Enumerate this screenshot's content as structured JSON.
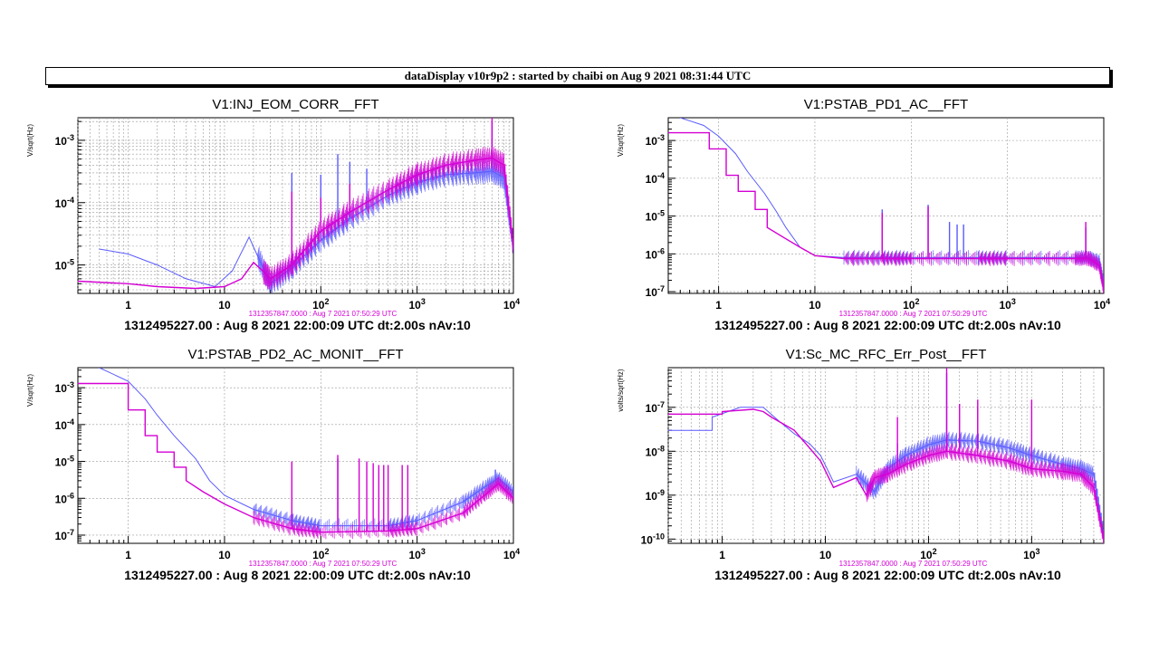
{
  "banner": "dataDisplay v10r9p2 : started by chaibi on Aug  9 2021 08:31:44 UTC",
  "colors": {
    "blue": "#5a5aff",
    "magenta": "#d400d4",
    "ref_label": "#d400d4",
    "grid": "#9a9a9a"
  },
  "chart_data": [
    {
      "type": "line",
      "title": "V1:INJ_EOM_CORR__FFT",
      "ylabel": "V/sqrt(Hz)",
      "xlabel": "",
      "xscale": "log",
      "yscale": "log",
      "xlim": [
        0.3,
        10000
      ],
      "ylim": [
        3.5e-06,
        0.0023
      ],
      "xticks": [
        "1",
        "10",
        "10^2",
        "10^3",
        "10^4"
      ],
      "yticks": [
        "10^-5",
        "10^-4",
        "10^-3"
      ],
      "grid": true,
      "ref_label": "1312357847.0000 : Aug  7 2021 07:50:29 UTC",
      "footer": "1312495227.00 : Aug  8 2021 22:00:09 UTC dt:2.00s nAv:10",
      "series": [
        {
          "color": "blue",
          "x": [
            0.5,
            1,
            2,
            4,
            8,
            12,
            18,
            22,
            30,
            50,
            100,
            200,
            500,
            1000,
            2000,
            4000,
            6000,
            8000,
            10000
          ],
          "y": [
            1.8e-05,
            1.5e-05,
            1e-05,
            6e-06,
            4.5e-06,
            8e-06,
            2.8e-05,
            1.4e-05,
            5e-06,
            9e-06,
            2.5e-05,
            5.5e-05,
            0.00013,
            0.00021,
            0.00028,
            0.0003,
            0.00032,
            0.00025,
            2e-05
          ],
          "peaks": [
            [
              50,
              0.0003
            ],
            [
              100,
              0.00028
            ],
            [
              150,
              0.0006
            ],
            [
              200,
              0.00045
            ],
            [
              300,
              0.00035
            ],
            [
              6000,
              0.002
            ]
          ]
        },
        {
          "color": "magenta",
          "x": [
            0.3,
            1,
            2,
            5,
            10,
            15,
            20,
            25,
            30,
            50,
            100,
            200,
            500,
            1000,
            2000,
            4000,
            6000,
            8000,
            10000
          ],
          "y": [
            5.5e-06,
            5e-06,
            4.5e-06,
            4.2e-06,
            4.5e-06,
            6e-06,
            1.1e-05,
            8e-06,
            6e-06,
            1e-05,
            3.5e-05,
            7e-05,
            0.00016,
            0.00028,
            0.0004,
            0.00048,
            0.00052,
            0.0004,
            2e-05
          ],
          "peaks": [
            [
              50,
              0.00015
            ],
            [
              100,
              0.00012
            ],
            [
              200,
              0.0002
            ],
            [
              6000,
              0.0023
            ]
          ]
        }
      ]
    },
    {
      "type": "line",
      "title": "V1:PSTAB_PD1_AC__FFT",
      "ylabel": "V/sqrt(Hz)",
      "xlabel": "",
      "xscale": "log",
      "yscale": "log",
      "xlim": [
        0.3,
        10000
      ],
      "ylim": [
        9e-08,
        0.004
      ],
      "xticks": [
        "1",
        "10",
        "10^2",
        "10^3",
        "10^4"
      ],
      "yticks": [
        "10^-7",
        "10^-6",
        "10^-5",
        "10^-4",
        "10^-3"
      ],
      "grid": true,
      "ref_label": "1312357847.0000 : Aug  7 2021 07:50:29 UTC",
      "footer": "1312495227.00 : Aug  8 2021 22:00:09 UTC dt:2.00s nAv:10",
      "series": [
        {
          "color": "blue",
          "x": [
            0.4,
            0.7,
            1,
            1.5,
            2,
            3,
            4,
            5,
            7,
            10,
            20,
            50,
            100,
            500,
            1000,
            5000,
            7000,
            9000,
            10000
          ],
          "y": [
            0.004,
            0.0025,
            0.0013,
            0.00045,
            0.00015,
            4e-05,
            1.3e-05,
            5e-06,
            1.5e-06,
            9e-07,
            8e-07,
            8e-07,
            8e-07,
            8e-07,
            8e-07,
            8e-07,
            8e-07,
            6e-07,
            1.5e-07
          ],
          "peaks": [
            [
              50,
              1.5e-05
            ],
            [
              150,
              2e-05
            ],
            [
              250,
              7e-06
            ],
            [
              300,
              6e-06
            ],
            [
              350,
              6e-06
            ],
            [
              6500,
              5e-06
            ]
          ]
        },
        {
          "color": "magenta",
          "x": [
            0.3,
            0.8,
            0.8,
            1.2,
            1.2,
            1.6,
            1.6,
            2.4,
            2.4,
            3.2,
            3.2,
            5,
            7,
            10,
            20,
            50,
            100,
            500,
            1000,
            5000,
            7000,
            9000,
            10000
          ],
          "y": [
            0.0016,
            0.0016,
            0.0006,
            0.0006,
            0.00012,
            0.00012,
            4.5e-05,
            4.5e-05,
            1.5e-05,
            1.5e-05,
            5e-06,
            2.5e-06,
            1.5e-06,
            9e-07,
            7.5e-07,
            7.5e-07,
            7.5e-07,
            7.5e-07,
            7.5e-07,
            7.5e-07,
            7.5e-07,
            5e-07,
            1.2e-07
          ],
          "peaks": [
            [
              50,
              1.2e-05
            ],
            [
              150,
              1.8e-05
            ],
            [
              6500,
              7e-06
            ]
          ]
        }
      ]
    },
    {
      "type": "line",
      "title": "V1:PSTAB_PD2_AC_MONIT__FFT",
      "ylabel": "V/sqrt(Hz)",
      "xlabel": "",
      "xscale": "log",
      "yscale": "log",
      "xlim": [
        0.3,
        10000
      ],
      "ylim": [
        6e-08,
        0.0035
      ],
      "xticks": [
        "1",
        "10",
        "10^2",
        "10^3",
        "10^4"
      ],
      "yticks": [
        "10^-7",
        "10^-6",
        "10^-5",
        "10^-4",
        "10^-3"
      ],
      "grid": true,
      "ref_label": "1312357847.0000 : Aug  7 2021 07:50:29 UTC",
      "footer": "1312495227.00 : Aug  8 2021 22:00:09 UTC dt:2.00s nAv:10",
      "series": [
        {
          "color": "blue",
          "x": [
            0.5,
            1,
            1.5,
            2,
            3,
            5,
            7,
            10,
            20,
            50,
            100,
            500,
            1000,
            3000,
            5000,
            7000,
            10000
          ],
          "y": [
            0.0035,
            0.0015,
            0.0005,
            0.00018,
            5e-05,
            1.2e-05,
            3e-06,
            1.2e-06,
            5e-07,
            2.5e-07,
            1.8e-07,
            1.8e-07,
            2.5e-07,
            8e-07,
            2e-06,
            3.5e-06,
            1.5e-06
          ],
          "peaks": [
            [
              150,
              1.2e-05
            ],
            [
              6500,
              6e-06
            ]
          ]
        },
        {
          "color": "magenta",
          "x": [
            0.3,
            1,
            1,
            1.5,
            1.5,
            2,
            2,
            3,
            3,
            4,
            4,
            6,
            10,
            20,
            50,
            100,
            500,
            1000,
            3000,
            5000,
            7000,
            10000
          ],
          "y": [
            0.0013,
            0.0013,
            0.00025,
            0.00025,
            5e-05,
            5e-05,
            1.8e-05,
            1.8e-05,
            7e-06,
            7e-06,
            3e-06,
            1.5e-06,
            7e-07,
            3e-07,
            1.5e-07,
            1.2e-07,
            1.3e-07,
            1.5e-07,
            4e-07,
            1.2e-06,
            2.5e-06,
            1e-06
          ],
          "peaks": [
            [
              50,
              1e-05
            ],
            [
              150,
              1.5e-05
            ],
            [
              250,
              1.2e-05
            ],
            [
              300,
              1e-05
            ],
            [
              350,
              9e-06
            ],
            [
              400,
              8e-06
            ],
            [
              450,
              8e-06
            ],
            [
              500,
              8e-06
            ],
            [
              700,
              8e-06
            ],
            [
              800,
              8e-06
            ]
          ]
        }
      ]
    },
    {
      "type": "line",
      "title": "V1:Sc_MC_RFC_Err_Post__FFT",
      "ylabel": "volts/sqrt(Hz)",
      "xlabel": "",
      "xscale": "log",
      "yscale": "log",
      "xlim": [
        0.3,
        5000
      ],
      "ylim": [
        8e-11,
        8e-07
      ],
      "xticks": [
        "1",
        "10",
        "10^2",
        "10^3"
      ],
      "yticks": [
        "10^-10",
        "10^-9",
        "10^-8",
        "10^-7"
      ],
      "grid": true,
      "ref_label": "1312357847.0000 : Aug  7 2021 07:50:29 UTC",
      "footer": "1312495227.00 : Aug  8 2021 22:00:09 UTC dt:2.00s nAv:10",
      "series": [
        {
          "color": "blue",
          "x": [
            0.3,
            0.8,
            0.8,
            1.5,
            2.5,
            3.5,
            5,
            7,
            9,
            12,
            20,
            30,
            40,
            60,
            100,
            150,
            300,
            600,
            1000,
            2000,
            3000,
            4000,
            5000
          ],
          "y": [
            3e-08,
            3e-08,
            6e-08,
            1e-07,
            1e-07,
            5e-08,
            2.5e-08,
            1.5e-08,
            8e-09,
            2e-09,
            3e-09,
            1.2e-09,
            4e-09,
            8e-09,
            1.4e-08,
            1.8e-08,
            1.7e-08,
            1.2e-08,
            8e-09,
            5e-09,
            4e-09,
            3e-09,
            1.2e-10
          ],
          "peaks": [
            [
              50,
              1.5e-08
            ],
            [
              150,
              6e-07
            ],
            [
              300,
              1e-07
            ]
          ]
        },
        {
          "color": "magenta",
          "x": [
            0.3,
            1,
            1,
            2,
            2.5,
            3,
            5,
            7,
            9,
            12,
            20,
            25,
            30,
            40,
            60,
            100,
            150,
            300,
            600,
            1000,
            2000,
            3000,
            4000,
            5000
          ],
          "y": [
            7e-08,
            7e-08,
            8e-08,
            9e-08,
            8e-08,
            6e-08,
            3e-08,
            1.2e-08,
            6e-09,
            1.5e-09,
            2.5e-09,
            1e-09,
            2.5e-09,
            3e-09,
            5e-09,
            8e-09,
            1e-08,
            8e-09,
            6e-09,
            4e-09,
            3.5e-09,
            3e-09,
            1.5e-09,
            1e-10
          ],
          "peaks": [
            [
              50,
              6e-08
            ],
            [
              150,
              8e-07
            ],
            [
              200,
              1.2e-07
            ],
            [
              300,
              1.5e-07
            ],
            [
              1000,
              1.5e-07
            ]
          ]
        }
      ]
    }
  ]
}
